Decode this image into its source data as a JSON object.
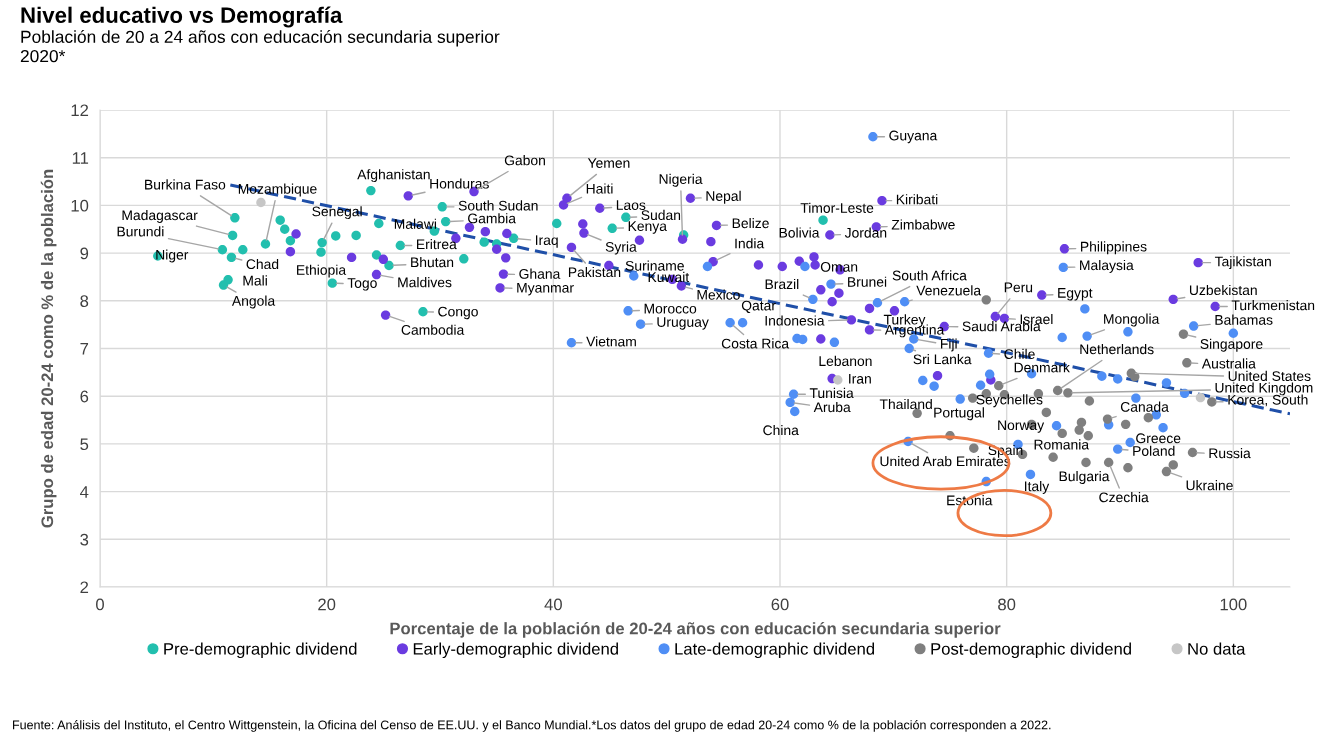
{
  "chart_data": {
    "type": "scatter",
    "title": "Nivel educativo vs Demografía",
    "subtitle": "Población de 20 a 24 años con educación secundaria superior\n2020*",
    "xlabel": "Porcentaje de la población de 20-24 años con educación secundaria superior",
    "ylabel": "Grupo de edad 20-24 como % de la población",
    "xlim": [
      0,
      105
    ],
    "ylim": [
      2,
      12
    ],
    "xticks": [
      0,
      20,
      40,
      60,
      80,
      100
    ],
    "yticks": [
      2,
      3,
      4,
      5,
      6,
      7,
      8,
      9,
      10,
      11,
      12
    ],
    "grid": true,
    "legend": "bottom",
    "marker": "circle",
    "series": [
      {
        "name": "Pre-demographic dividend",
        "color": "#22bfae",
        "x": [
          5.1,
          11.9,
          11.7,
          10.8,
          11.6,
          12.6,
          11.3,
          10.9,
          14.6,
          15.9,
          16.3,
          16.8,
          19.6,
          19.5,
          20.8,
          22.6,
          20.5,
          24.6,
          23.9,
          24.4,
          25.5,
          26.5,
          29.5,
          30.2,
          30.5,
          32.1,
          28.5,
          33.9,
          36.5,
          35.0,
          40.3,
          46.4,
          45.2,
          51.5,
          63.8
        ],
        "values": [
          8.94,
          9.74,
          9.37,
          9.07,
          8.91,
          9.07,
          8.44,
          8.33,
          9.19,
          9.69,
          9.5,
          9.26,
          9.22,
          9.02,
          9.36,
          9.37,
          8.37,
          9.62,
          10.31,
          8.96,
          8.74,
          9.16,
          9.46,
          9.97,
          9.66,
          8.88,
          7.77,
          9.23,
          9.31,
          9.19,
          9.62,
          9.75,
          9.52,
          9.38,
          9.69
        ]
      },
      {
        "name": "Early-demographic dividend",
        "color": "#6a3be0",
        "x": [
          17.3,
          16.8,
          22.2,
          27.2,
          24.4,
          25.0,
          25.2,
          33.0,
          31.4,
          32.6,
          34.0,
          35.9,
          35.0,
          35.8,
          35.6,
          35.3,
          41.2,
          40.9,
          44.1,
          42.6,
          42.7,
          41.6,
          44.9,
          47.6,
          51.4,
          52.1,
          54.4,
          53.9,
          54.1,
          50.5,
          51.3,
          58.1,
          60.2,
          61.7,
          63.0,
          63.1,
          65.3,
          64.4,
          69.0,
          68.5,
          63.6,
          65.2,
          64.6,
          67.9,
          70.1,
          67.9,
          66.3,
          63.6,
          74.5,
          79.0,
          79.8,
          83.1,
          85.1,
          96.9,
          94.7,
          98.4,
          73.9,
          78.6,
          64.6
        ],
        "values": [
          9.4,
          9.03,
          8.91,
          10.2,
          8.55,
          8.87,
          7.7,
          10.29,
          9.31,
          9.54,
          9.45,
          9.41,
          9.08,
          8.9,
          8.56,
          8.27,
          10.15,
          10.01,
          9.94,
          9.61,
          9.42,
          9.12,
          8.74,
          9.27,
          9.29,
          10.15,
          9.58,
          9.24,
          8.82,
          8.45,
          8.31,
          8.75,
          8.72,
          8.83,
          8.92,
          8.75,
          8.65,
          9.38,
          10.1,
          9.55,
          8.23,
          8.16,
          7.98,
          7.84,
          7.79,
          7.39,
          7.6,
          7.2,
          7.46,
          7.67,
          7.63,
          8.12,
          9.09,
          8.8,
          8.03,
          7.88,
          6.43,
          6.34,
          6.37
        ]
      },
      {
        "name": "Late-demographic dividend",
        "color": "#4f8ef5",
        "x": [
          68.2,
          41.6,
          46.6,
          47.7,
          47.1,
          53.6,
          56.7,
          55.6,
          61.5,
          62.0,
          64.8,
          62.2,
          62.9,
          64.5,
          68.6,
          71.0,
          71.8,
          71.4,
          78.4,
          84.9,
          87.1,
          90.7,
          86.9,
          85.0,
          96.5,
          100.0,
          72.6,
          73.6,
          77.7,
          78.5,
          82.2,
          88.4,
          89.8,
          94.1,
          95.7,
          75.9,
          91.4,
          93.2,
          61.2,
          60.9,
          61.3,
          71.3,
          78.2,
          82.1,
          81.0,
          84.4,
          90.9,
          89.8,
          89.0,
          93.8
        ],
        "values": [
          11.44,
          7.12,
          7.79,
          7.51,
          8.52,
          8.72,
          7.54,
          7.54,
          7.21,
          7.19,
          7.13,
          8.72,
          8.03,
          8.35,
          7.96,
          7.98,
          7.2,
          7.0,
          6.9,
          7.23,
          7.26,
          7.35,
          7.83,
          8.7,
          7.47,
          7.32,
          6.33,
          6.21,
          6.23,
          6.46,
          6.47,
          6.42,
          6.36,
          6.28,
          6.06,
          5.94,
          5.96,
          5.61,
          6.04,
          5.87,
          5.68,
          5.05,
          4.21,
          4.36,
          4.99,
          5.38,
          5.03,
          4.89,
          5.4,
          5.34
        ]
      },
      {
        "name": "Post-demographic dividend",
        "color": "#7f7f7f",
        "x": [
          78.2,
          95.6,
          95.9,
          91.0,
          91.3,
          79.3,
          84.5,
          85.4,
          98.1,
          72.1,
          77.0,
          78.2,
          79.8,
          82.8,
          87.3,
          83.5,
          88.9,
          90.5,
          92.5,
          86.6,
          75.0,
          77.1,
          81.4,
          82.2,
          84.1,
          87.0,
          86.4,
          87.2,
          84.9,
          89.0,
          90.7,
          96.4,
          94.7,
          94.1
        ],
        "values": [
          8.02,
          7.3,
          6.7,
          6.48,
          6.41,
          6.22,
          6.12,
          6.07,
          5.88,
          5.64,
          5.96,
          6.05,
          6.03,
          6.05,
          5.9,
          5.66,
          5.52,
          5.41,
          5.55,
          5.45,
          5.17,
          4.91,
          4.78,
          5.41,
          4.72,
          4.61,
          5.29,
          5.17,
          5.22,
          4.61,
          4.5,
          4.82,
          4.56,
          4.42
        ]
      },
      {
        "name": "No data",
        "color": "#c6c6c6",
        "x": [
          14.2,
          65.1,
          97.1
        ],
        "values": [
          10.06,
          6.34,
          5.97
        ]
      },
      {
        "type": "line",
        "color": "#1f4fa8",
        "line_style": "dashed",
        "marker": "none",
        "x": [
          11.5,
          105
        ],
        "values": [
          10.43,
          5.63
        ]
      }
    ],
    "annotations": [
      {
        "text": "Niger",
        "x": 5.1,
        "y": 8.94
      },
      {
        "text": "Burkina Faso",
        "x": 11.9,
        "y": 9.74
      },
      {
        "text": "Madagascar",
        "x": 11.7,
        "y": 9.37
      },
      {
        "text": "Burundi",
        "x": 10.8,
        "y": 9.07
      },
      {
        "text": "Chad",
        "x": 11.6,
        "y": 8.91
      },
      {
        "text": "Mali",
        "x": 11.3,
        "y": 8.44
      },
      {
        "text": "Angola",
        "x": 10.9,
        "y": 8.33
      },
      {
        "text": "Mozambique",
        "x": 14.6,
        "y": 9.19
      },
      {
        "text": "Senegal",
        "x": 19.6,
        "y": 9.22
      },
      {
        "text": "Ethiopia",
        "x": 19.5,
        "y": 9.02
      },
      {
        "text": "Togo",
        "x": 20.5,
        "y": 8.37
      },
      {
        "text": "Afghanistan",
        "x": 23.9,
        "y": 10.31
      },
      {
        "text": "Bhutan",
        "x": 25.5,
        "y": 8.74
      },
      {
        "text": "Eritrea",
        "x": 26.5,
        "y": 9.16
      },
      {
        "text": "Malawi",
        "x": 29.5,
        "y": 9.46
      },
      {
        "text": "South Sudan",
        "x": 30.2,
        "y": 9.97
      },
      {
        "text": "Gambia",
        "x": 30.5,
        "y": 9.66
      },
      {
        "text": "Congo",
        "x": 28.5,
        "y": 7.77
      },
      {
        "text": "Iraq",
        "x": 36.5,
        "y": 9.31
      },
      {
        "text": "Honduras",
        "x": 27.2,
        "y": 10.2
      },
      {
        "text": "Gabon",
        "x": 33.0,
        "y": 10.29
      },
      {
        "text": "Maldives",
        "x": 24.4,
        "y": 8.55
      },
      {
        "text": "Cambodia",
        "x": 25.2,
        "y": 7.7
      },
      {
        "text": "Ghana",
        "x": 35.6,
        "y": 8.56
      },
      {
        "text": "Myanmar",
        "x": 35.3,
        "y": 8.27
      },
      {
        "text": "Yemen",
        "x": 41.2,
        "y": 10.15
      },
      {
        "text": "Haiti",
        "x": 40.9,
        "y": 10.01
      },
      {
        "text": "Laos",
        "x": 44.1,
        "y": 9.94
      },
      {
        "text": "Sudan",
        "x": 46.4,
        "y": 9.75
      },
      {
        "text": "Kenya",
        "x": 45.2,
        "y": 9.52
      },
      {
        "text": "Syria",
        "x": 42.7,
        "y": 9.42
      },
      {
        "text": "Pakistan",
        "x": 41.6,
        "y": 9.12
      },
      {
        "text": "Suriname",
        "x": 47.1,
        "y": 8.52
      },
      {
        "text": "Kuwait",
        "x": 50.5,
        "y": 8.45
      },
      {
        "text": "Mexico",
        "x": 51.3,
        "y": 8.31
      },
      {
        "text": "Nigeria",
        "x": 51.4,
        "y": 9.29
      },
      {
        "text": "Nepal",
        "x": 52.1,
        "y": 10.15
      },
      {
        "text": "Belize",
        "x": 54.4,
        "y": 9.58
      },
      {
        "text": "India",
        "x": 54.1,
        "y": 8.82
      },
      {
        "text": "Bolivia",
        "x": 63.0,
        "y": 8.92
      },
      {
        "text": "Oman",
        "x": 63.1,
        "y": 8.75
      },
      {
        "text": "Jordan",
        "x": 64.4,
        "y": 9.38
      },
      {
        "text": "Kiribati",
        "x": 69.0,
        "y": 10.1
      },
      {
        "text": "Zimbabwe",
        "x": 68.5,
        "y": 9.55
      },
      {
        "text": "Timor-Leste",
        "x": 63.8,
        "y": 9.69
      },
      {
        "text": "Guyana",
        "x": 68.2,
        "y": 11.44
      },
      {
        "text": "Brazil",
        "x": 62.9,
        "y": 8.03
      },
      {
        "text": "Brunei",
        "x": 64.5,
        "y": 8.35
      },
      {
        "text": "South Africa",
        "x": 68.6,
        "y": 7.96
      },
      {
        "text": "Venezuela",
        "x": 71.0,
        "y": 7.98
      },
      {
        "text": "Indonesia",
        "x": 66.3,
        "y": 7.6
      },
      {
        "text": "Turkey",
        "x": 70.1,
        "y": 7.79
      },
      {
        "text": "Argentina",
        "x": 67.9,
        "y": 7.39
      },
      {
        "text": "Fiji",
        "x": 71.8,
        "y": 7.2
      },
      {
        "text": "Sri Lanka",
        "x": 71.4,
        "y": 7.0
      },
      {
        "text": "Saudi Arabia",
        "x": 74.5,
        "y": 7.46
      },
      {
        "text": "Peru",
        "x": 79.0,
        "y": 7.67
      },
      {
        "text": "Israel",
        "x": 79.8,
        "y": 7.63
      },
      {
        "text": "Egypt",
        "x": 83.1,
        "y": 8.12
      },
      {
        "text": "Philippines",
        "x": 85.1,
        "y": 9.09
      },
      {
        "text": "Malaysia",
        "x": 85.0,
        "y": 8.7
      },
      {
        "text": "Tajikistan",
        "x": 96.9,
        "y": 8.8
      },
      {
        "text": "Uzbekistan",
        "x": 94.7,
        "y": 8.03
      },
      {
        "text": "Turkmenistan",
        "x": 98.4,
        "y": 7.88
      },
      {
        "text": "Mongolia",
        "x": 87.1,
        "y": 7.26
      },
      {
        "text": "Bahamas",
        "x": 96.5,
        "y": 7.47
      },
      {
        "text": "Singapore",
        "x": 95.6,
        "y": 7.3
      },
      {
        "text": "Netherlands",
        "x": 84.5,
        "y": 6.12
      },
      {
        "text": "Australia",
        "x": 95.9,
        "y": 6.7
      },
      {
        "text": "United States",
        "x": 91.0,
        "y": 6.48
      },
      {
        "text": "United Kingdom",
        "x": 85.4,
        "y": 6.07
      },
      {
        "text": "Korea, South",
        "x": 98.1,
        "y": 5.88
      },
      {
        "text": "Chile",
        "x": 78.4,
        "y": 6.9
      },
      {
        "text": "Denmark",
        "x": 79.3,
        "y": 6.22
      },
      {
        "text": "Vietnam",
        "x": 41.6,
        "y": 7.12
      },
      {
        "text": "Morocco",
        "x": 46.6,
        "y": 7.79
      },
      {
        "text": "Uruguay",
        "x": 47.7,
        "y": 7.51
      },
      {
        "text": "Qatar",
        "x": 56.7,
        "y": 7.54
      },
      {
        "text": "Costa Rica",
        "x": 55.6,
        "y": 7.54
      },
      {
        "text": "Lebanon",
        "x": 64.8,
        "y": 7.13
      },
      {
        "text": "Iran",
        "x": 65.1,
        "y": 6.34
      },
      {
        "text": "Tunisia",
        "x": 61.2,
        "y": 6.04
      },
      {
        "text": "Aruba",
        "x": 60.9,
        "y": 5.87
      },
      {
        "text": "China",
        "x": 61.3,
        "y": 5.68
      },
      {
        "text": "Thailand",
        "x": 72.1,
        "y": 5.64
      },
      {
        "text": "Portugal",
        "x": 75.0,
        "y": 5.17
      },
      {
        "text": "Seychelles",
        "x": 79.8,
        "y": 6.03
      },
      {
        "text": "Norway",
        "x": 82.2,
        "y": 5.41
      },
      {
        "text": "United Arab Emirates",
        "x": 71.3,
        "y": 5.05
      },
      {
        "text": "Estonia",
        "x": 78.2,
        "y": 4.21
      },
      {
        "text": "Spain",
        "x": 81.4,
        "y": 4.78
      },
      {
        "text": "Italy",
        "x": 82.1,
        "y": 4.36
      },
      {
        "text": "Romania",
        "x": 87.2,
        "y": 5.17
      },
      {
        "text": "Bulgaria",
        "x": 87.0,
        "y": 4.61
      },
      {
        "text": "Czechia",
        "x": 89.0,
        "y": 4.61
      },
      {
        "text": "Canada",
        "x": 88.9,
        "y": 5.52
      },
      {
        "text": "Greece",
        "x": 90.9,
        "y": 5.03
      },
      {
        "text": "Poland",
        "x": 89.8,
        "y": 4.89
      },
      {
        "text": "Russia",
        "x": 96.4,
        "y": 4.82
      },
      {
        "text": "Ukraine",
        "x": 94.1,
        "y": 4.42
      },
      "Fuente: Análisis del Instituto, el Centro Wittgenstein, la Oficina del Censo de EE.UU. y el Banco Mundial.*Los datos del grupo de edad 20-24 como % de la población corresponden a 2022."
    ]
  }
}
